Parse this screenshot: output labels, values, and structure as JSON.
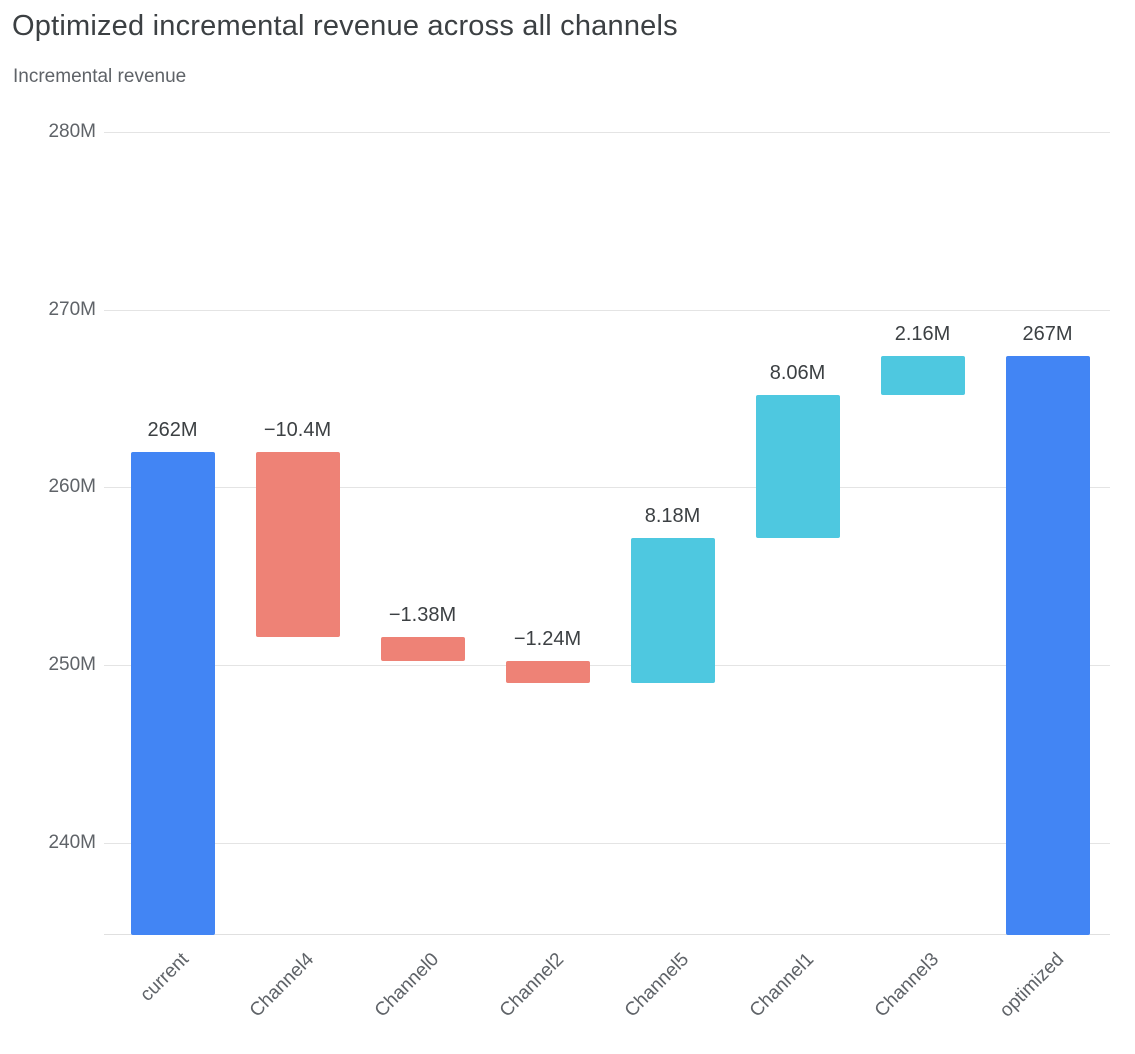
{
  "chart_data": {
    "type": "bar",
    "subtype": "waterfall",
    "title": "Optimized incremental revenue across all channels",
    "ylabel": "Incremental revenue",
    "xlabel": "",
    "unit": "M",
    "grid": true,
    "legend": "none",
    "ylim": [
      234.8,
      280.8
    ],
    "y_ticks": [
      280,
      270,
      260,
      250,
      240
    ],
    "y_tick_labels": [
      "280M",
      "270M",
      "260M",
      "250M",
      "240M"
    ],
    "categories": [
      "current",
      "Channel4",
      "Channel0",
      "Channel2",
      "Channel5",
      "Channel1",
      "Channel3",
      "optimized"
    ],
    "bars": [
      {
        "category": "current",
        "kind": "total",
        "value": 262,
        "start": 234.8,
        "end": 262,
        "label": "262M"
      },
      {
        "category": "Channel4",
        "kind": "decrease",
        "value": -10.4,
        "start": 262,
        "end": 251.6,
        "label": "−10.4M"
      },
      {
        "category": "Channel0",
        "kind": "decrease",
        "value": -1.38,
        "start": 251.6,
        "end": 250.22,
        "label": "−1.38M"
      },
      {
        "category": "Channel2",
        "kind": "decrease",
        "value": -1.24,
        "start": 250.22,
        "end": 248.98,
        "label": "−1.24M"
      },
      {
        "category": "Channel5",
        "kind": "increase",
        "value": 8.18,
        "start": 248.98,
        "end": 257.16,
        "label": "8.18M"
      },
      {
        "category": "Channel1",
        "kind": "increase",
        "value": 8.06,
        "start": 257.16,
        "end": 265.22,
        "label": "8.06M"
      },
      {
        "category": "Channel3",
        "kind": "increase",
        "value": 2.16,
        "start": 265.22,
        "end": 267.38,
        "label": "2.16M"
      },
      {
        "category": "optimized",
        "kind": "total",
        "value": 267,
        "start": 234.8,
        "end": 267.38,
        "label": "267M"
      }
    ],
    "colors": {
      "total": "#4285f4",
      "increase": "#4ec8e0",
      "decrease": "#ee8276",
      "grid": "#e4e4e4",
      "axis_text": "#5f6368",
      "value_text": "#3c4043"
    }
  }
}
